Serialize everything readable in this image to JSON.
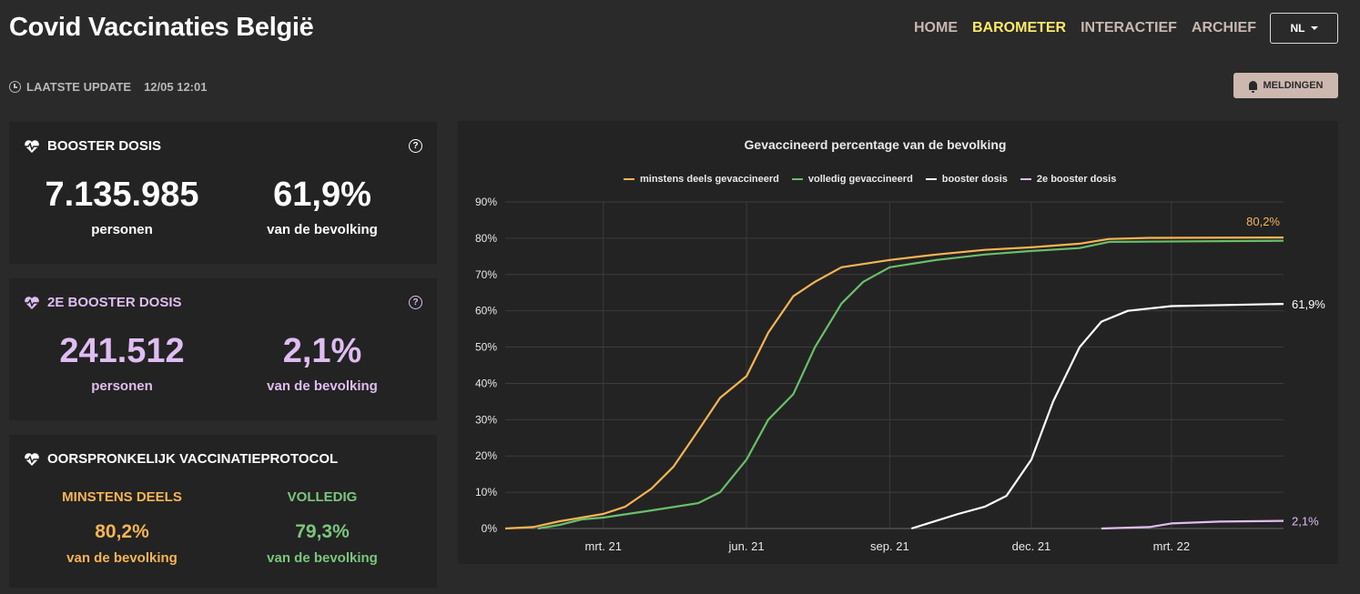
{
  "header": {
    "title": "Covid Vaccinaties België",
    "nav": [
      {
        "label": "HOME",
        "active": false
      },
      {
        "label": "BAROMETER",
        "active": true
      },
      {
        "label": "INTERACTIEF",
        "active": false
      },
      {
        "label": "ARCHIEF",
        "active": false
      }
    ],
    "language": "NL"
  },
  "update": {
    "label": "LAATSTE UPDATE",
    "time": "12/05 12:01",
    "icon": "clock-icon"
  },
  "notifications_label": "MELDINGEN",
  "cards": {
    "booster": {
      "title": "BOOSTER DOSIS",
      "count": "7.135.985",
      "count_label": "personen",
      "percent": "61,9%",
      "percent_label": "van de bevolking",
      "help": "?"
    },
    "second_booster": {
      "title": "2E BOOSTER DOSIS",
      "count": "241.512",
      "count_label": "personen",
      "percent": "2,1%",
      "percent_label": "van de bevolking",
      "help": "?"
    },
    "original": {
      "title": "OORSPRONKELIJK VACCINATIEPROTOCOL",
      "partial_title": "MINSTENS DEELS",
      "partial_value": "80,2%",
      "partial_label": "van de bevolking",
      "full_title": "VOLLEDIG",
      "full_value": "79,3%",
      "full_label": "van de bevolking"
    }
  },
  "colors": {
    "orange": "#f7b552",
    "green": "#6abf69",
    "white": "#ffffff",
    "lilac": "#dfbdf2",
    "accent": "#fde86b"
  },
  "chart_data": {
    "type": "line",
    "title": "Gevaccineerd percentage van de bevolking",
    "x_ticks": [
      "mrt. 21",
      "jun. 21",
      "sep. 21",
      "dec. 21",
      "mrt. 22"
    ],
    "y_ticks": [
      "0%",
      "10%",
      "20%",
      "30%",
      "40%",
      "50%",
      "60%",
      "70%",
      "80%",
      "90%"
    ],
    "ylim": [
      0,
      90
    ],
    "x_range": [
      "2020-12-28",
      "2022-05-12"
    ],
    "series": [
      {
        "name": "minstens deels gevaccineerd",
        "color": "#f7b552",
        "end_label": "80,2%",
        "points": [
          [
            "2020-12-28",
            0
          ],
          [
            "2021-01-15",
            0.4
          ],
          [
            "2021-02-01",
            2
          ],
          [
            "2021-02-15",
            3
          ],
          [
            "2021-03-01",
            4
          ],
          [
            "2021-03-15",
            6
          ],
          [
            "2021-04-01",
            11
          ],
          [
            "2021-04-15",
            17
          ],
          [
            "2021-05-01",
            27
          ],
          [
            "2021-05-15",
            36
          ],
          [
            "2021-06-01",
            42
          ],
          [
            "2021-06-15",
            54
          ],
          [
            "2021-07-01",
            64
          ],
          [
            "2021-07-15",
            68
          ],
          [
            "2021-08-01",
            72
          ],
          [
            "2021-09-01",
            74
          ],
          [
            "2021-10-01",
            75.5
          ],
          [
            "2021-11-01",
            76.8
          ],
          [
            "2021-12-01",
            77.5
          ],
          [
            "2022-01-01",
            78.5
          ],
          [
            "2022-01-20",
            79.8
          ],
          [
            "2022-02-15",
            80.1
          ],
          [
            "2022-05-12",
            80.2
          ]
        ]
      },
      {
        "name": "volledig gevaccineerd",
        "color": "#6abf69",
        "end_label": "",
        "points": [
          [
            "2021-01-18",
            0
          ],
          [
            "2021-02-01",
            1
          ],
          [
            "2021-02-15",
            2.5
          ],
          [
            "2021-03-01",
            3
          ],
          [
            "2021-04-01",
            5
          ],
          [
            "2021-05-01",
            7
          ],
          [
            "2021-05-15",
            10
          ],
          [
            "2021-06-01",
            19
          ],
          [
            "2021-06-15",
            30
          ],
          [
            "2021-07-01",
            37
          ],
          [
            "2021-07-15",
            50
          ],
          [
            "2021-08-01",
            62
          ],
          [
            "2021-08-15",
            68
          ],
          [
            "2021-09-01",
            72
          ],
          [
            "2021-10-01",
            74
          ],
          [
            "2021-11-01",
            75.5
          ],
          [
            "2021-12-01",
            76.5
          ],
          [
            "2022-01-01",
            77.3
          ],
          [
            "2022-01-20",
            79
          ],
          [
            "2022-05-12",
            79.3
          ]
        ]
      },
      {
        "name": "booster dosis",
        "color": "#ffffff",
        "end_label": "61,9%",
        "points": [
          [
            "2021-09-15",
            0
          ],
          [
            "2021-10-15",
            4
          ],
          [
            "2021-11-01",
            6
          ],
          [
            "2021-11-15",
            9
          ],
          [
            "2021-12-01",
            19
          ],
          [
            "2021-12-15",
            35
          ],
          [
            "2022-01-01",
            50
          ],
          [
            "2022-01-15",
            57
          ],
          [
            "2022-02-01",
            60
          ],
          [
            "2022-03-01",
            61.3
          ],
          [
            "2022-05-12",
            61.9
          ]
        ]
      },
      {
        "name": "2e booster dosis",
        "color": "#dfbdf2",
        "end_label": "2,1%",
        "points": [
          [
            "2022-01-15",
            0
          ],
          [
            "2022-02-15",
            0.4
          ],
          [
            "2022-03-01",
            1.4
          ],
          [
            "2022-04-01",
            1.9
          ],
          [
            "2022-05-12",
            2.1
          ]
        ]
      }
    ]
  }
}
